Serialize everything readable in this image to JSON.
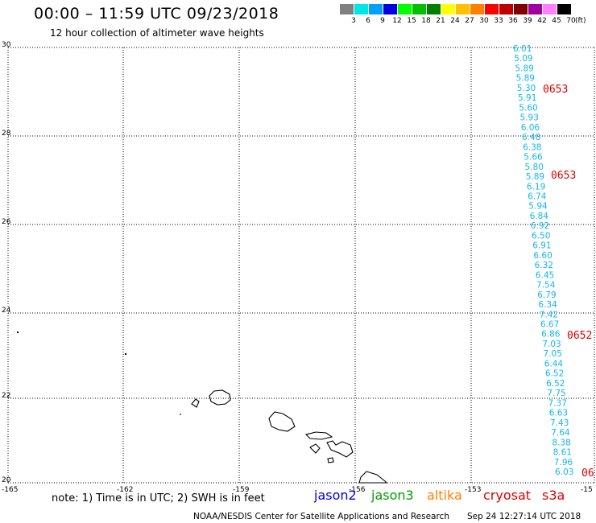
{
  "header": {
    "title": "00:00 – 11:59 UTC 09/23/2018",
    "subtitle": "12 hour collection of altimeter wave heights"
  },
  "scale": {
    "unit": "(ft)",
    "colors": [
      "#808080",
      "#00e6e6",
      "#00a0ff",
      "#0000e0",
      "#00ff00",
      "#00c000",
      "#008000",
      "#ffff00",
      "#ffc000",
      "#ff8000",
      "#ff0000",
      "#c00000",
      "#800000",
      "#a000a0",
      "#ff80ff",
      "#000000"
    ],
    "labels": [
      "3",
      "6",
      "9",
      "12",
      "15",
      "18",
      "21",
      "24",
      "27",
      "30",
      "33",
      "36",
      "39",
      "42",
      "45",
      "70"
    ]
  },
  "axes": {
    "lon_labels": [
      "-165",
      "-162",
      "-159",
      "-156",
      "-153",
      "-15"
    ],
    "lat_labels": [
      "30",
      "28",
      "26",
      "24",
      "22",
      "20"
    ]
  },
  "track": {
    "color": "#12b6ea",
    "swh_ft": [
      "6.01",
      "5.09",
      "5.89",
      "5.89",
      "5.30",
      "5.91",
      "5.60",
      "5.93",
      "6.06",
      "6.48",
      "6.38",
      "5.66",
      "5.80",
      "5.89",
      "6.19",
      "6.74",
      "5.94",
      "6.84",
      "6.92",
      "6.50",
      "6.91",
      "6.60",
      "6.32",
      "6.45",
      "7.54",
      "6.79",
      "6.34",
      "7.42",
      "6.67",
      "6.86",
      "7.03",
      "7.05",
      "6.44",
      "6.52",
      "6.52",
      "7.75",
      "7.37",
      "6.63",
      "7.43",
      "7.64",
      "8.38",
      "8.61",
      "7.96",
      "6.03"
    ]
  },
  "time_labels": [
    "0653",
    "0653",
    "0652",
    "06"
  ],
  "note": "note: 1) Time is in UTC; 2) SWH is in feet",
  "satellites": [
    {
      "name": "jason2",
      "color": "#0000e0"
    },
    {
      "name": "jason3",
      "color": "#00a000"
    },
    {
      "name": "altika",
      "color": "#ff8000"
    },
    {
      "name": "cryosat",
      "color": "#e00000"
    },
    {
      "name": "s3a",
      "color": "#e00000"
    }
  ],
  "footer": {
    "credit": "NOAA/NESDIS Center for Satellite Applications and Research",
    "timestamp": "Sep 24 12:27:14 UTC 2018"
  }
}
